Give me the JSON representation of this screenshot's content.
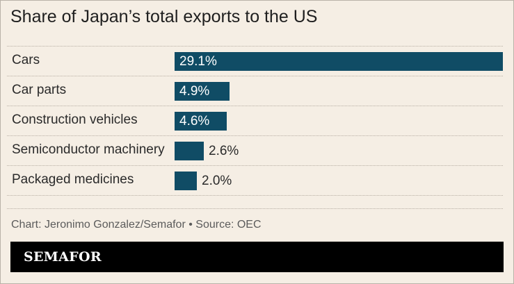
{
  "title": "Share of Japan’s total exports to the US",
  "footer": "Chart: Jeronimo Gonzalez/Semafor • Source: OEC",
  "brand": "SEMAFOR",
  "colors": {
    "bar": "#104c65",
    "background": "#f5eee4",
    "brand_bar": "#000000"
  },
  "chart_data": {
    "type": "bar",
    "orientation": "horizontal",
    "categories": [
      "Cars",
      "Car parts",
      "Construction vehicles",
      "Semiconductor machinery",
      "Packaged medicines"
    ],
    "values": [
      29.1,
      4.9,
      4.6,
      2.6,
      2.0
    ],
    "value_labels": [
      "29.1%",
      "4.9%",
      "4.6%",
      "2.6%",
      "2.0%"
    ],
    "unit": "%",
    "xlim": [
      0,
      29.1
    ],
    "grid": false,
    "legend": "none"
  }
}
